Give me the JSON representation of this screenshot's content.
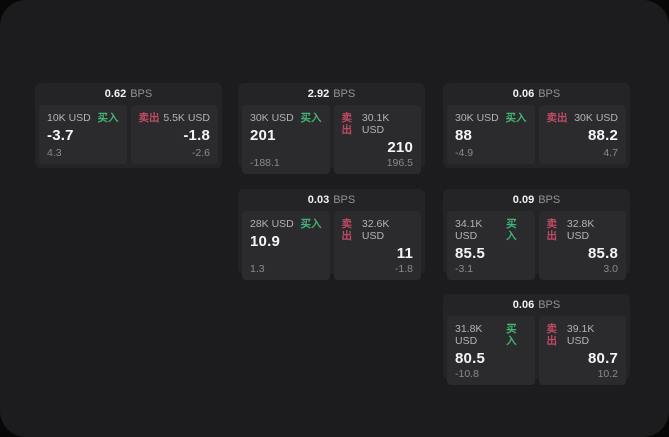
{
  "labels": {
    "bps_unit": "BPS",
    "buy": "买入",
    "sell": "卖出"
  },
  "colors": {
    "page_bg": "#070707",
    "window_bg": "#1c1c1e",
    "card_bg": "#242426",
    "panel_bg": "#2b2b2e",
    "buy_green": "#43b374",
    "sell_red": "#c04a62",
    "primary_text": "#f5f5f6",
    "muted_text": "#8a8a8e"
  },
  "cards": [
    {
      "bps": "0.62",
      "buy": {
        "size": "10K USD",
        "price": "-3.7",
        "delta": "4.3"
      },
      "sell": {
        "size": "5.5K USD",
        "price": "-1.8",
        "delta": "-2.6"
      }
    },
    {
      "bps": "2.92",
      "buy": {
        "size": "30K USD",
        "price": "201",
        "delta": "-188.1"
      },
      "sell": {
        "size": "30.1K USD",
        "price": "210",
        "delta": "196.5"
      }
    },
    {
      "bps": "0.06",
      "buy": {
        "size": "30K USD",
        "price": "88",
        "delta": "-4.9"
      },
      "sell": {
        "size": "30K USD",
        "price": "88.2",
        "delta": "4.7"
      }
    },
    {
      "bps": "0.03",
      "buy": {
        "size": "28K USD",
        "price": "10.9",
        "delta": "1.3"
      },
      "sell": {
        "size": "32.6K USD",
        "price": "11",
        "delta": "-1.8"
      }
    },
    {
      "bps": "0.09",
      "buy": {
        "size": "34.1K USD",
        "price": "85.5",
        "delta": "-3.1"
      },
      "sell": {
        "size": "32.8K USD",
        "price": "85.8",
        "delta": "3.0"
      }
    },
    {
      "bps": "0.06",
      "buy": {
        "size": "31.8K USD",
        "price": "80.5",
        "delta": "-10.8"
      },
      "sell": {
        "size": "39.1K USD",
        "price": "80.7",
        "delta": "10.2"
      }
    }
  ]
}
